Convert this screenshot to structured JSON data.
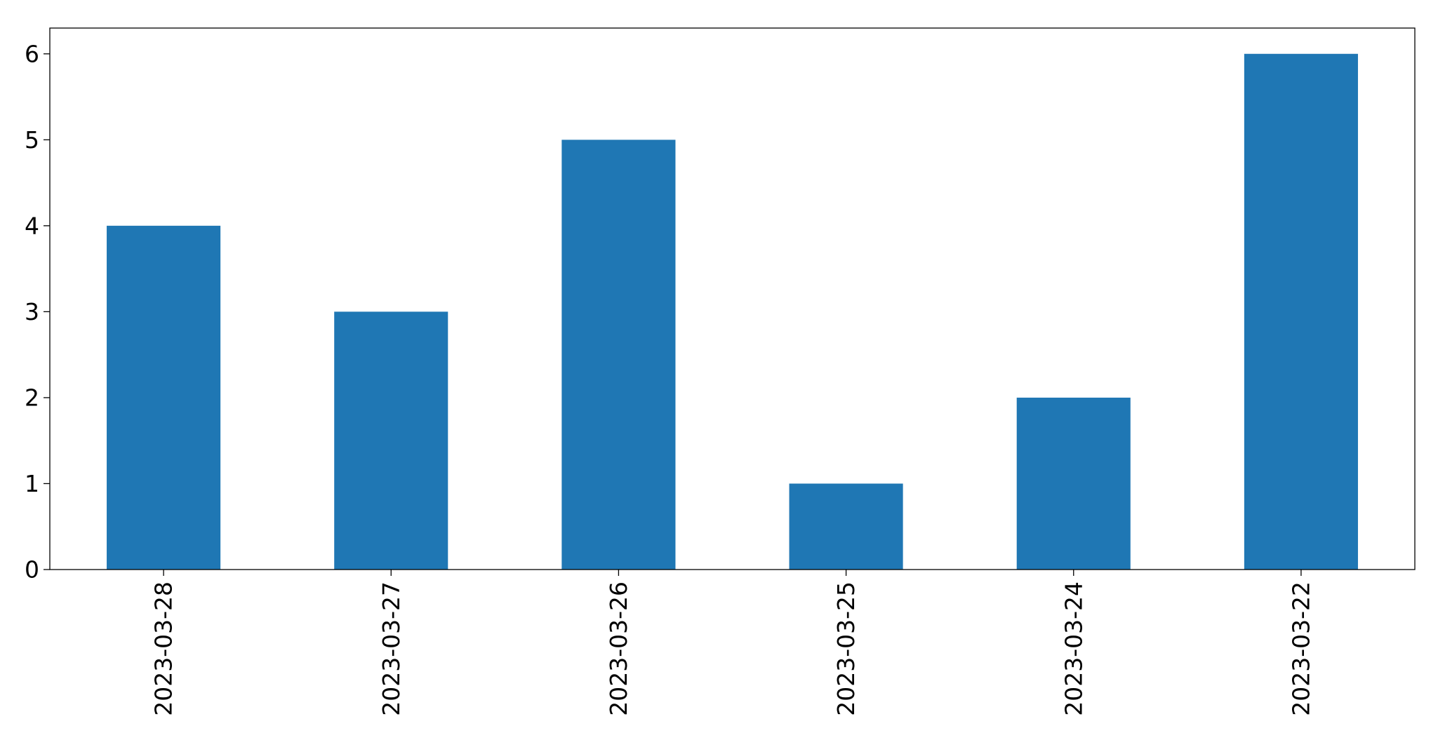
{
  "chart_data": {
    "type": "bar",
    "title": "",
    "xlabel": "",
    "ylabel": "",
    "categories": [
      "2023-03-28",
      "2023-03-27",
      "2023-03-26",
      "2023-03-25",
      "2023-03-24",
      "2023-03-22"
    ],
    "values": [
      4,
      3,
      5,
      1,
      2,
      6
    ],
    "ylim": [
      0,
      6.3
    ],
    "yticks": [
      "0",
      "1",
      "2",
      "3",
      "4",
      "5",
      "6"
    ],
    "grid": false,
    "legend": "none",
    "bar_color": "#1f77b4"
  }
}
